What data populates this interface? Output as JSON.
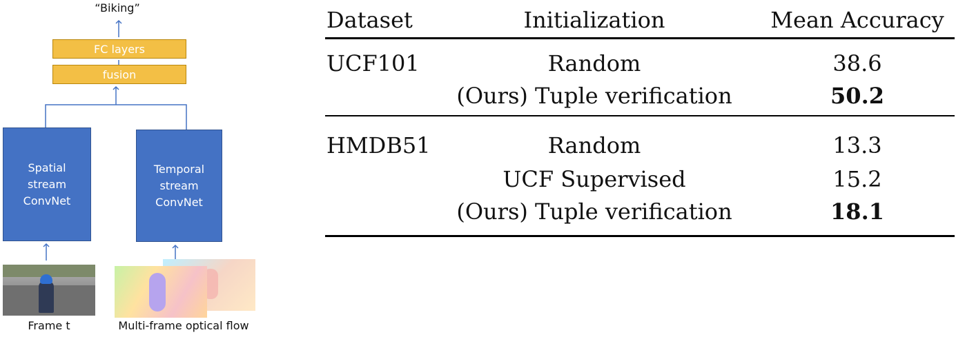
{
  "diagram": {
    "output_label": "“Biking”",
    "fc_layers": "FC layers",
    "fusion": "fusion",
    "spatial_stream": [
      "Spatial",
      "stream",
      "ConvNet"
    ],
    "temporal_stream": [
      "Temporal",
      "stream",
      "ConvNet"
    ],
    "frame_caption": "Frame t",
    "flow_caption": "Multi-frame optical flow",
    "colors": {
      "stream_box": "#4472c4",
      "layer_box": "#f3bf45",
      "arrow": "#4472c4"
    }
  },
  "table": {
    "headers": [
      "Dataset",
      "Initialization",
      "Mean Accuracy"
    ],
    "groups": [
      {
        "dataset": "UCF101",
        "rows": [
          {
            "initialization": "Random",
            "accuracy": "38.6",
            "bold": false
          },
          {
            "initialization": "(Ours) Tuple verification",
            "accuracy": "50.2",
            "bold": true
          }
        ]
      },
      {
        "dataset": "HMDB51",
        "rows": [
          {
            "initialization": "Random",
            "accuracy": "13.3",
            "bold": false
          },
          {
            "initialization": "UCF Supervised",
            "accuracy": "15.2",
            "bold": false
          },
          {
            "initialization": "(Ours) Tuple verification",
            "accuracy": "18.1",
            "bold": true
          }
        ]
      }
    ]
  }
}
